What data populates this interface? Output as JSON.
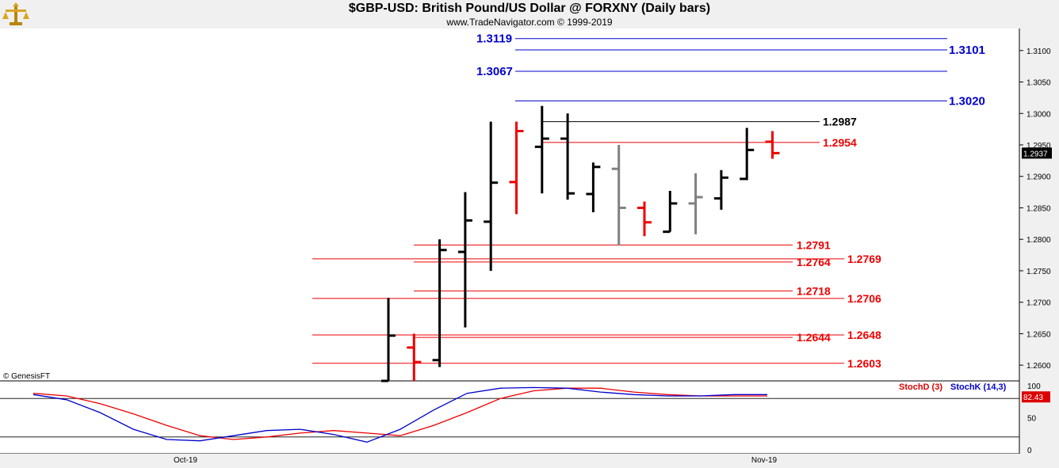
{
  "header": {
    "title": "$GBP-USD:  British Pound/US Dollar @ FORXNY  (Daily bars)",
    "subtitle": "www.TradeNavigator.com © 1999-2019"
  },
  "credit": "© GenesisFT",
  "colors": {
    "bar_up": "#000000",
    "bar_down": "#ee0000",
    "bar_neutral": "#808080",
    "level_blue": "#0000cc",
    "level_red": "#dd0000",
    "level_black": "#000000",
    "stoch_d": "#dd0000",
    "stoch_k": "#0000cc"
  },
  "chart_data": [
    {
      "type": "ohlc",
      "title": "$GBP-USD:  British Pound/US Dollar @ FORXNY  (Daily bars)",
      "y_scale": {
        "range": [
          1.2575,
          1.3135
        ],
        "ticks": [
          1.26,
          1.265,
          1.27,
          1.275,
          1.28,
          1.285,
          1.29,
          1.295,
          1.3,
          1.305,
          1.31
        ],
        "tick_labels": [
          "1.2600",
          "1.2650",
          "1.2700",
          "1.2750",
          "1.2800",
          "1.2850",
          "1.2900",
          "1.2950",
          "1.3000",
          "1.3050",
          "1.3100"
        ]
      },
      "x_labels": [
        {
          "label": "Oct-19",
          "index": 0
        },
        {
          "label": "Nov-19",
          "index": 22
        }
      ],
      "last_price": "1.2937",
      "bars": [
        {
          "open": 1.2575,
          "high": 1.2707,
          "low": 1.2575,
          "close": 1.2647,
          "color": "black"
        },
        {
          "open": 1.2628,
          "high": 1.265,
          "low": 1.2575,
          "close": 1.2605,
          "color": "red"
        },
        {
          "open": 1.2608,
          "high": 1.28,
          "low": 1.2597,
          "close": 1.2783,
          "color": "black"
        },
        {
          "open": 1.278,
          "high": 1.2875,
          "low": 1.266,
          "close": 1.283,
          "color": "black"
        },
        {
          "open": 1.2828,
          "high": 1.2987,
          "low": 1.275,
          "close": 1.289,
          "color": "black"
        },
        {
          "open": 1.2891,
          "high": 1.2987,
          "low": 1.284,
          "close": 1.2972,
          "color": "red"
        },
        {
          "open": 1.2947,
          "high": 1.3012,
          "low": 1.2873,
          "close": 1.296,
          "color": "black"
        },
        {
          "open": 1.296,
          "high": 1.3,
          "low": 1.2863,
          "close": 1.2873,
          "color": "black"
        },
        {
          "open": 1.2872,
          "high": 1.2922,
          "low": 1.2843,
          "close": 1.2915,
          "color": "black"
        },
        {
          "open": 1.2912,
          "high": 1.295,
          "low": 1.279,
          "close": 1.285,
          "color": "gray"
        },
        {
          "open": 1.285,
          "high": 1.286,
          "low": 1.2805,
          "close": 1.2827,
          "color": "red"
        },
        {
          "open": 1.2812,
          "high": 1.2877,
          "low": 1.2812,
          "close": 1.2857,
          "color": "black"
        },
        {
          "open": 1.2857,
          "high": 1.2905,
          "low": 1.2808,
          "close": 1.2867,
          "color": "gray"
        },
        {
          "open": 1.2865,
          "high": 1.291,
          "low": 1.2847,
          "close": 1.2898,
          "color": "black"
        },
        {
          "open": 1.2896,
          "high": 1.2977,
          "low": 1.2894,
          "close": 1.2942,
          "color": "black"
        },
        {
          "open": 1.2955,
          "high": 1.2972,
          "low": 1.2928,
          "close": 1.2937,
          "color": "red"
        }
      ],
      "levels": [
        {
          "label": "1.3119",
          "value": 1.3119,
          "color": "blue"
        },
        {
          "label": "1.3101",
          "value": 1.3101,
          "color": "blue"
        },
        {
          "label": "1.3067",
          "value": 1.3067,
          "color": "blue"
        },
        {
          "label": "1.3020",
          "value": 1.302,
          "color": "blue"
        },
        {
          "label": "1.2987",
          "value": 1.2987,
          "color": "black"
        },
        {
          "label": "1.2954",
          "value": 1.2954,
          "color": "red"
        },
        {
          "label": "1.2791",
          "value": 1.2791,
          "color": "red"
        },
        {
          "label": "1.2769",
          "value": 1.2769,
          "color": "red"
        },
        {
          "label": "1.2764",
          "value": 1.2764,
          "color": "red"
        },
        {
          "label": "1.2718",
          "value": 1.2718,
          "color": "red"
        },
        {
          "label": "1.2706",
          "value": 1.2706,
          "color": "red"
        },
        {
          "label": "1.2648",
          "value": 1.2648,
          "color": "red"
        },
        {
          "label": "1.2644",
          "value": 1.2644,
          "color": "red"
        },
        {
          "label": "1.2603",
          "value": 1.2603,
          "color": "red"
        }
      ]
    },
    {
      "type": "line",
      "title": "",
      "y_ticks": [
        0,
        50,
        100
      ],
      "reference_line": 80,
      "last_value": "82.43",
      "series": [
        {
          "name": "StochD (3)",
          "color": "red",
          "values": [
            88,
            84,
            72,
            56,
            38,
            22,
            16,
            20,
            26,
            30,
            26,
            22,
            38,
            58,
            80,
            92,
            96,
            96,
            90,
            86,
            84,
            84,
            84
          ]
        },
        {
          "name": "StochK (14,3)",
          "color": "blue",
          "values": [
            86,
            78,
            58,
            32,
            16,
            14,
            22,
            30,
            32,
            24,
            12,
            32,
            62,
            88,
            96,
            97,
            96,
            90,
            86,
            84,
            84,
            86,
            86
          ]
        }
      ]
    }
  ]
}
